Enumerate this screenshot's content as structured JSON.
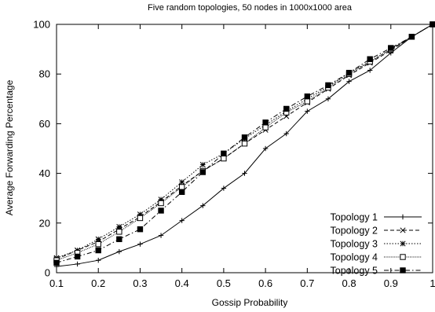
{
  "chart_data": {
    "type": "line",
    "title": "Five random topologies, 50 nodes in 1000x1000 area",
    "xlabel": "Gossip Probability",
    "ylabel": "Average Forwarding Percentage",
    "xlim": [
      0.1,
      1
    ],
    "ylim": [
      0,
      100
    ],
    "xticks": [
      0.1,
      0.2,
      0.3,
      0.4,
      0.5,
      0.6,
      0.7,
      0.8,
      0.9,
      1
    ],
    "xtick_labels": [
      "0.1",
      "0.2",
      "0.3",
      "0.4",
      "0.5",
      "0.6",
      "0.7",
      "0.8",
      "0.9",
      "1"
    ],
    "yticks": [
      0,
      20,
      40,
      60,
      80,
      100
    ],
    "ytick_labels": [
      "0",
      "20",
      "40",
      "60",
      "80",
      "100"
    ],
    "grid": false,
    "legend_position": "bottom-right",
    "x": [
      0.1,
      0.15,
      0.2,
      0.25,
      0.3,
      0.35,
      0.4,
      0.45,
      0.5,
      0.55,
      0.6,
      0.65,
      0.7,
      0.75,
      0.8,
      0.85,
      0.9,
      0.95,
      1
    ],
    "series": [
      {
        "name": "Topology 1",
        "marker": "plus",
        "dash": "solid",
        "values": [
          2.5,
          3.5,
          5,
          8.5,
          11.5,
          15,
          21,
          27,
          34,
          40,
          50,
          56,
          65,
          70,
          77,
          81.5,
          88.5,
          95,
          100
        ]
      },
      {
        "name": "Topology 2",
        "marker": "cross",
        "dash": "dashed",
        "values": [
          5.5,
          9,
          12.5,
          17.5,
          22.5,
          28.5,
          35,
          41,
          46,
          52,
          57.5,
          63,
          68.5,
          74,
          79.5,
          84.5,
          89.5,
          95,
          100
        ]
      },
      {
        "name": "Topology 3",
        "marker": "star",
        "dash": "dotted",
        "values": [
          6,
          9,
          13.5,
          18.5,
          23.5,
          29.5,
          36.5,
          43.5,
          48,
          54,
          59.5,
          65,
          70,
          75,
          80.5,
          85,
          90,
          95,
          100
        ]
      },
      {
        "name": "Topology 4",
        "marker": "square-open",
        "dash": "dense-dotted",
        "values": [
          5,
          8,
          11.5,
          16.5,
          22,
          28,
          34.5,
          41,
          46,
          52,
          58.5,
          64.5,
          69,
          74.5,
          80,
          85,
          90,
          95,
          100
        ]
      },
      {
        "name": "Topology 5",
        "marker": "square-filled",
        "dash": "dash-dot",
        "values": [
          4,
          6.5,
          9,
          13.5,
          17.5,
          25,
          32.5,
          40.5,
          48,
          54.5,
          60.5,
          66,
          71,
          75.5,
          80.5,
          86,
          90.5,
          95,
          100
        ]
      }
    ]
  }
}
